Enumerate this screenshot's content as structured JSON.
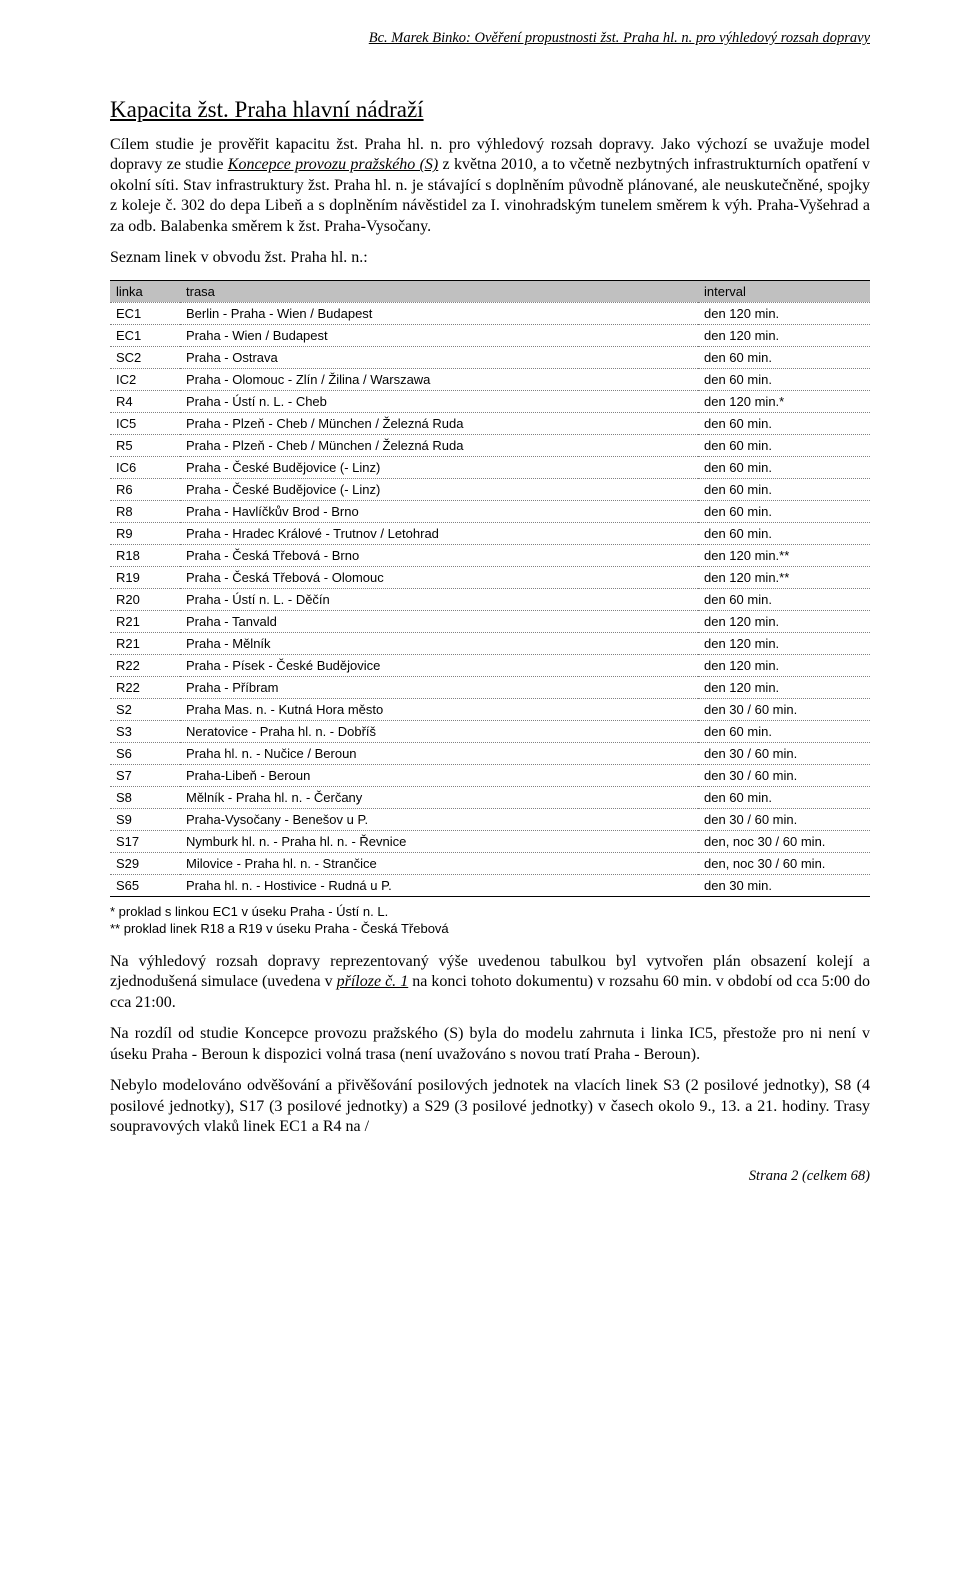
{
  "header": "Bc. Marek Binko: Ověření propustnosti žst. Praha hl. n. pro výhledový rozsah dopravy",
  "section_title": "Kapacita žst. Praha hlavní nádraží",
  "intro_html": "Cílem studie je prověřit kapacitu žst. Praha hl. n. pro výhledový rozsah dopravy. Jako výchozí se uvažuje model dopravy ze studie <span class=\"u\">Koncepce provozu pražského (S)</span> z května 2010, a to včetně nezbytných infrastrukturních opatření v okolní síti. Stav infrastruktury žst. Praha hl. n. je stávající s doplněním původně plánované, ale neuskutečněné, spojky z koleje č. 302 do depa Libeň a s doplněním návěstidel za I. vinohradským tunelem směrem k výh. Praha-Vyšehrad a za odb. Balabenka směrem k žst. Praha-Vysočany.",
  "list_label": "Seznam linek v obvodu žst. Praha hl. n.:",
  "table": {
    "headers": [
      "linka",
      "trasa",
      "interval"
    ],
    "rows": [
      [
        "EC1",
        "Berlin - Praha - Wien / Budapest",
        "den 120 min."
      ],
      [
        "EC1",
        "Praha - Wien / Budapest",
        "den 120 min."
      ],
      [
        "SC2",
        "Praha - Ostrava",
        "den 60 min."
      ],
      [
        "IC2",
        "Praha - Olomouc - Zlín / Žilina / Warszawa",
        "den 60 min."
      ],
      [
        "R4",
        "Praha - Ústí n. L. - Cheb",
        "den 120 min.*"
      ],
      [
        "IC5",
        "Praha - Plzeň - Cheb / München / Železná Ruda",
        "den 60 min."
      ],
      [
        "R5",
        "Praha - Plzeň - Cheb / München / Železná Ruda",
        "den 60 min."
      ],
      [
        "IC6",
        "Praha - České Budějovice (- Linz)",
        "den 60 min."
      ],
      [
        "R6",
        "Praha - České Budějovice (- Linz)",
        "den 60 min."
      ],
      [
        "R8",
        "Praha - Havlíčkův Brod - Brno",
        "den 60 min."
      ],
      [
        "R9",
        "Praha - Hradec Králové - Trutnov / Letohrad",
        "den 60 min."
      ],
      [
        "R18",
        "Praha - Česká Třebová - Brno",
        "den 120 min.**"
      ],
      [
        "R19",
        "Praha - Česká Třebová - Olomouc",
        "den 120 min.**"
      ],
      [
        "R20",
        "Praha - Ústí n. L. - Děčín",
        "den 60 min."
      ],
      [
        "R21",
        "Praha - Tanvald",
        "den 120 min."
      ],
      [
        "R21",
        "Praha - Mělník",
        "den 120 min."
      ],
      [
        "R22",
        "Praha - Písek - České Budějovice",
        "den 120 min."
      ],
      [
        "R22",
        "Praha - Příbram",
        "den 120 min."
      ],
      [
        "S2",
        "Praha Mas. n. - Kutná Hora město",
        "den 30 / 60 min."
      ],
      [
        "S3",
        "Neratovice - Praha hl. n. - Dobříš",
        "den 60 min."
      ],
      [
        "S6",
        "Praha hl. n. - Nučice / Beroun",
        "den 30 / 60 min."
      ],
      [
        "S7",
        "Praha-Libeň - Beroun",
        "den 30 / 60 min."
      ],
      [
        "S8",
        "Mělník - Praha hl. n. - Čerčany",
        "den 60 min."
      ],
      [
        "S9",
        "Praha-Vysočany - Benešov u P.",
        "den 30 / 60 min."
      ],
      [
        "S17",
        "Nymburk hl. n. - Praha hl. n. - Řevnice",
        "den, noc 30 / 60 min."
      ],
      [
        "S29",
        "Milovice - Praha hl. n. - Strančice",
        "den, noc 30 / 60 min."
      ],
      [
        "S65",
        "Praha hl. n. - Hostivice - Rudná u P.",
        "den 30 min."
      ]
    ]
  },
  "footnote1": "* proklad s linkou EC1 v úseku Praha - Ústí n. L.",
  "footnote2": "** proklad linek R18 a R19 v úseku Praha - Česká Třebová",
  "para_after1_html": "Na výhledový rozsah dopravy reprezentovaný výše uvedenou tabulkou byl vytvořen plán obsazení kolejí a zjednodušená simulace (uvedena v <span class=\"u\">příloze č. 1</span> na konci tohoto dokumentu) v rozsahu 60 min. v období od cca 5:00 do cca 21:00.",
  "para_after2": "Na rozdíl od studie Koncepce provozu pražského (S) byla do modelu zahrnuta i linka IC5, přestože pro ni není v úseku Praha - Beroun k dispozici volná trasa (není uvažováno s novou tratí Praha - Beroun).",
  "para_after3": "Nebylo modelováno odvěšování a přivěšování posilových jednotek na vlacích linek S3 (2 posilové jednotky), S8 (4 posilové jednotky), S17 (3 posilové jednotky) a S29 (3 posilové jednotky) v časech okolo 9., 13. a 21. hodiny. Trasy soupravových vlaků linek EC1 a R4 na /",
  "footer": "Strana 2 (celkem 68)"
}
